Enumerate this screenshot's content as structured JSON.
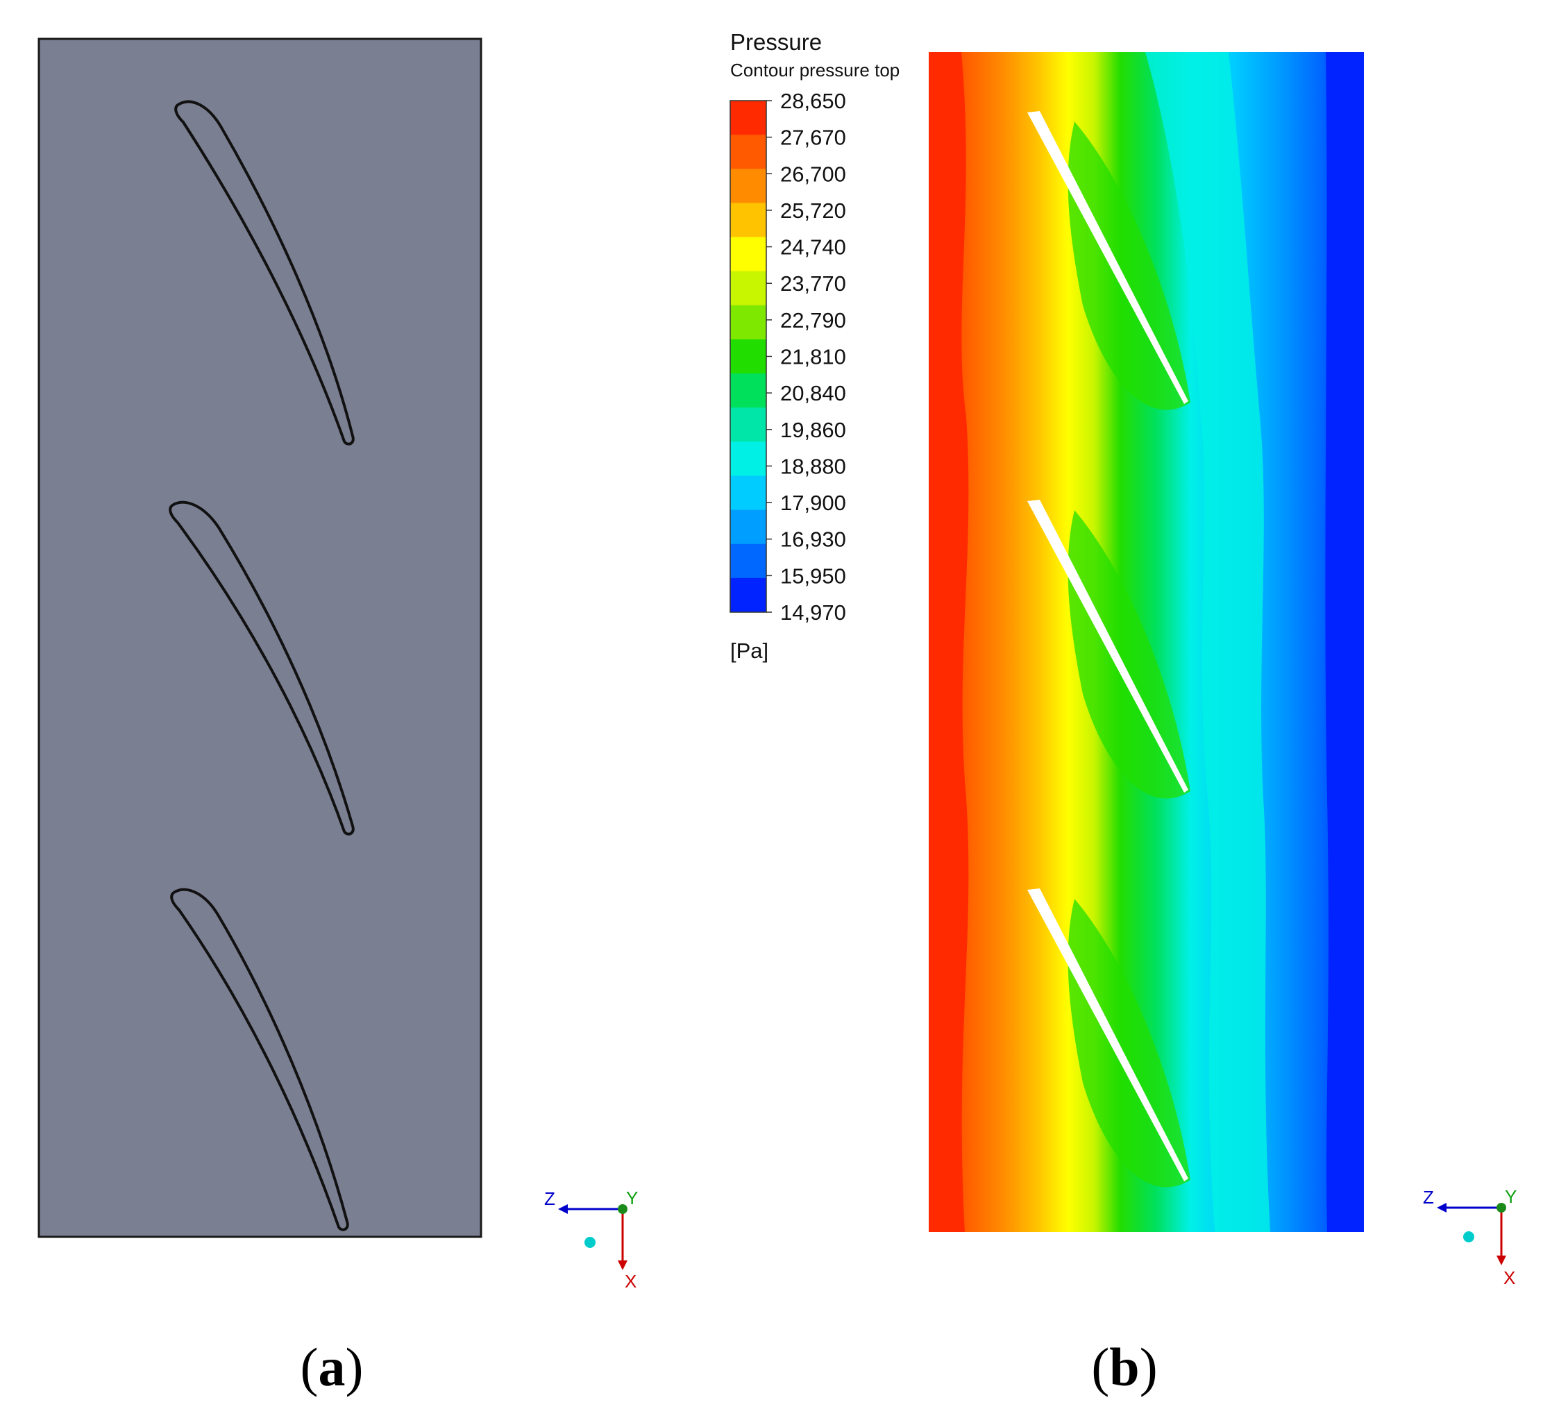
{
  "panel_a": {
    "caption_open": "(",
    "caption_letter": "a",
    "caption_close": ")",
    "background": "#7a7f92"
  },
  "panel_b": {
    "caption_open": "(",
    "caption_letter": "b",
    "caption_close": ")",
    "legend": {
      "title": "Pressure",
      "subtitle": "Contour pressure top",
      "unit": "[Pa]",
      "ticks": [
        "28,650",
        "27,670",
        "26,700",
        "25,720",
        "24,740",
        "23,770",
        "22,790",
        "21,810",
        "20,840",
        "19,860",
        "18,880",
        "17,900",
        "16,930",
        "15,950",
        "14,970"
      ],
      "colors": [
        "#ff2a00",
        "#ff5a00",
        "#ff8c00",
        "#ffc300",
        "#ffff00",
        "#c8f500",
        "#7ee800",
        "#22dd00",
        "#00e05a",
        "#00e6a8",
        "#00f0e6",
        "#00ccff",
        "#009eff",
        "#0068ff",
        "#0023ff"
      ]
    }
  },
  "triad": {
    "z": "Z",
    "y": "Y",
    "x": "X",
    "colors": {
      "z": "#0000cc",
      "y": "#12a012",
      "x": "#cc0000",
      "origin": "#1a8a1a",
      "dot": "#00cccc"
    }
  }
}
